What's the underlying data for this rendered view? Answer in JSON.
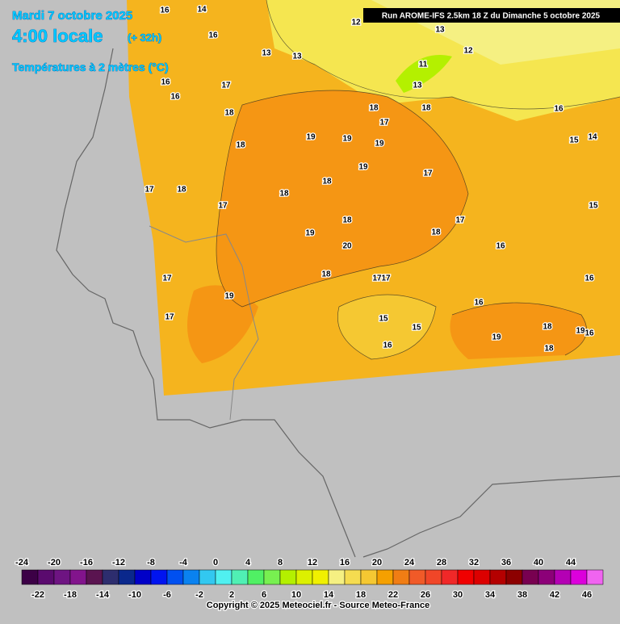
{
  "header": {
    "date": "Mardi 7 octobre 2025",
    "time": "4:00 locale",
    "lead": "(+ 32h)",
    "variable": "Températures à 2 mètres (°C)",
    "run": "Run AROME-IFS 2.5km 18 Z du Dimanche 5 octobre 2025"
  },
  "map": {
    "labels": [
      16,
      14,
      16,
      13,
      13,
      17,
      16,
      16,
      18,
      18,
      17,
      18,
      17,
      18,
      19,
      19,
      19,
      18,
      18,
      19,
      20,
      18,
      17,
      19,
      17,
      18,
      17,
      19,
      18,
      17,
      16,
      15,
      16,
      19,
      18,
      19,
      16,
      18,
      16,
      15,
      14,
      15,
      16,
      12,
      13,
      11,
      13,
      12,
      15,
      16,
      17,
      17,
      17,
      18
    ]
  },
  "legend": {
    "ticks": [
      -24,
      -22,
      -20,
      -18,
      -16,
      -14,
      -12,
      -10,
      -8,
      -6,
      -4,
      -2,
      0,
      2,
      4,
      6,
      8,
      10,
      12,
      14,
      16,
      18,
      20,
      22,
      24,
      26,
      28,
      30,
      32,
      34,
      36,
      38,
      40,
      42,
      44,
      46
    ],
    "colors": [
      "#3c0046",
      "#5a0a6e",
      "#6e1482",
      "#82148c",
      "#5a1450",
      "#2d2d6e",
      "#0a288c",
      "#0000c8",
      "#0014f0",
      "#0050f0",
      "#0a82f0",
      "#32c8f0",
      "#50f0f0",
      "#50f0b4",
      "#50f064",
      "#78f050",
      "#b4f000",
      "#dcf000",
      "#f0f000",
      "#f5f082",
      "#f5dc50",
      "#f5c832",
      "#f5a000",
      "#f07d14",
      "#f05a28",
      "#f04628",
      "#f02828",
      "#f00000",
      "#dc0000",
      "#b40000",
      "#8c0000",
      "#780050",
      "#8c0078",
      "#b400b4",
      "#dc00dc",
      "#f064f0"
    ]
  },
  "footer": {
    "copyright": "Copyright © 2025 Meteociel.fr - Source Meteo-France"
  }
}
